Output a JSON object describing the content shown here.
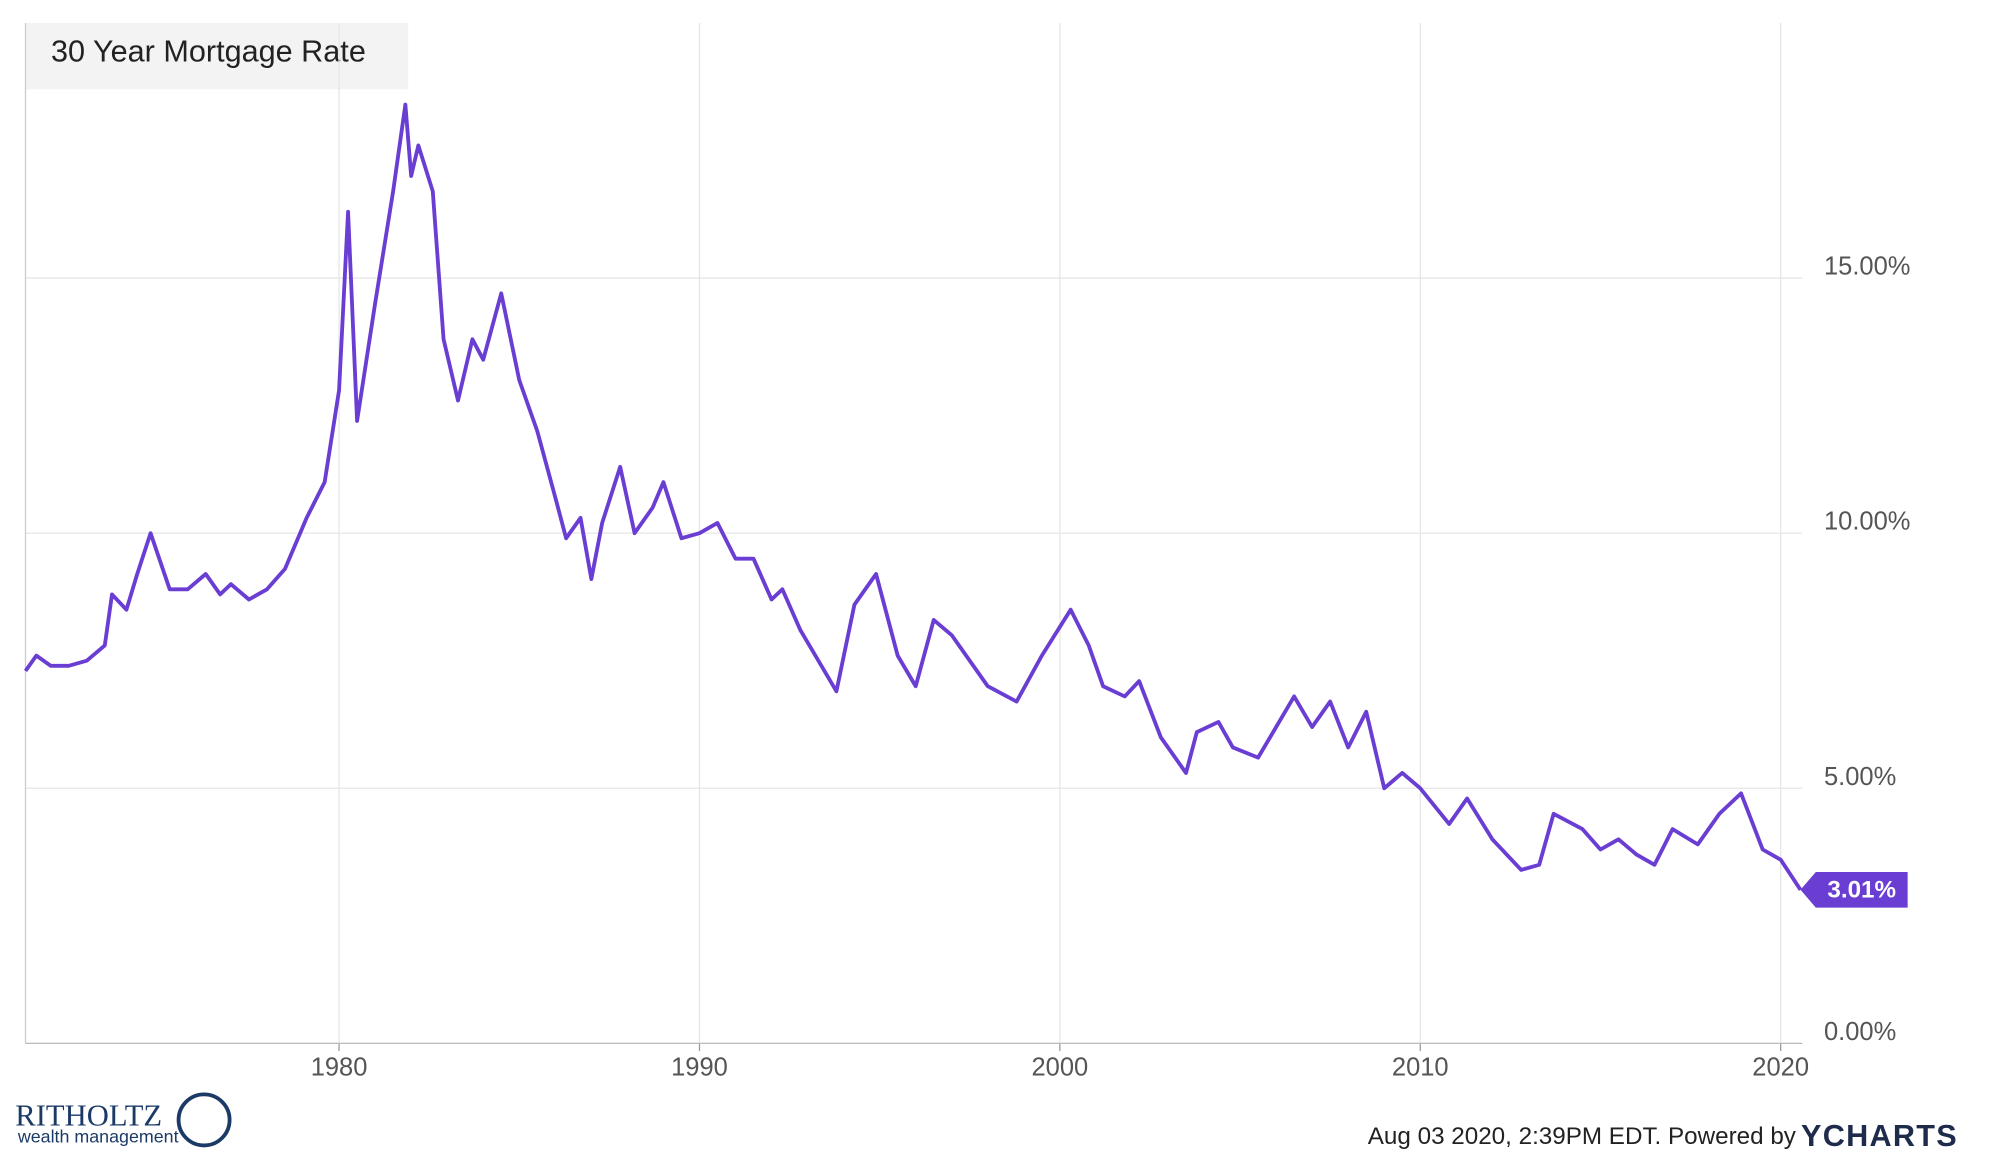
{
  "chart_data": {
    "type": "line",
    "title": "30 Year Mortgage Rate",
    "x": [
      1971.3,
      1971.6,
      1972.0,
      1972.5,
      1973.0,
      1973.5,
      1973.7,
      1974.1,
      1974.4,
      1974.77,
      1975.3,
      1975.8,
      1976.3,
      1976.7,
      1977.0,
      1977.5,
      1978.0,
      1978.5,
      1979.1,
      1979.6,
      1980.0,
      1980.25,
      1980.5,
      1981.0,
      1981.5,
      1981.84,
      1982.0,
      1982.2,
      1982.6,
      1982.9,
      1983.3,
      1983.7,
      1984.0,
      1984.5,
      1985.0,
      1985.5,
      1986.0,
      1986.3,
      1986.7,
      1987.0,
      1987.3,
      1987.8,
      1988.2,
      1988.7,
      1989.0,
      1989.5,
      1990.0,
      1990.5,
      1991.0,
      1991.5,
      1992.0,
      1992.3,
      1992.8,
      1993.3,
      1993.8,
      1994.3,
      1994.9,
      1995.5,
      1996.0,
      1996.5,
      1997.0,
      1997.5,
      1998.0,
      1998.8,
      1999.5,
      2000.3,
      2000.8,
      2001.2,
      2001.8,
      2002.2,
      2002.8,
      2003.5,
      2003.8,
      2004.4,
      2004.8,
      2005.5,
      2006.5,
      2007.0,
      2007.5,
      2008.0,
      2008.5,
      2009.0,
      2009.5,
      2010.0,
      2010.8,
      2011.3,
      2012.0,
      2012.8,
      2013.3,
      2013.7,
      2014.5,
      2015.0,
      2015.5,
      2016.0,
      2016.5,
      2017.0,
      2017.7,
      2018.3,
      2018.9,
      2019.5,
      2020.0,
      2020.55
    ],
    "values": [
      7.3,
      7.6,
      7.4,
      7.4,
      7.5,
      7.8,
      8.8,
      8.5,
      9.2,
      10.0,
      8.9,
      8.9,
      9.2,
      8.8,
      9.0,
      8.7,
      8.9,
      9.3,
      10.3,
      11.0,
      12.8,
      16.3,
      12.2,
      14.5,
      16.7,
      18.4,
      17.0,
      17.6,
      16.7,
      13.8,
      12.6,
      13.8,
      13.4,
      14.7,
      13.0,
      12.0,
      10.7,
      9.9,
      10.3,
      9.1,
      10.2,
      11.3,
      10.0,
      10.5,
      11.0,
      9.9,
      10.0,
      10.2,
      9.5,
      9.5,
      8.7,
      8.9,
      8.1,
      7.5,
      6.9,
      8.6,
      9.2,
      7.6,
      7.0,
      8.3,
      8.0,
      7.5,
      7.0,
      6.7,
      7.6,
      8.5,
      7.8,
      7.0,
      6.8,
      7.1,
      6.0,
      5.3,
      6.1,
      6.3,
      5.8,
      5.6,
      6.8,
      6.2,
      6.7,
      5.8,
      6.5,
      5.0,
      5.3,
      5.0,
      4.3,
      4.8,
      4.0,
      3.4,
      3.5,
      4.5,
      4.2,
      3.8,
      4.0,
      3.7,
      3.5,
      4.2,
      3.9,
      4.5,
      4.9,
      3.8,
      3.6,
      3.01
    ],
    "value_labels": [
      null,
      null,
      null,
      null,
      null,
      null,
      null,
      null,
      null,
      null,
      null,
      null,
      null,
      null,
      null,
      null,
      null,
      null,
      null,
      null,
      null,
      null,
      null,
      null,
      null,
      null,
      null,
      null,
      null,
      null,
      null,
      null,
      null,
      null,
      null,
      null,
      null,
      null,
      null,
      null,
      null,
      null,
      null,
      null,
      null,
      null,
      null,
      null,
      null,
      null,
      null,
      null,
      null,
      null,
      null,
      null,
      null,
      null,
      null,
      null,
      null,
      null,
      null,
      null,
      null,
      null,
      null,
      null,
      null,
      null,
      null,
      null,
      null,
      null,
      null,
      null,
      null,
      null,
      null,
      null,
      null,
      null,
      null,
      null,
      null,
      null,
      null,
      null,
      null,
      null,
      null,
      null,
      null,
      null,
      null,
      null,
      null,
      null,
      null,
      null,
      null,
      "3.01%"
    ],
    "color": "#6a3dd3",
    "xlim": [
      1971.3,
      2020.6
    ],
    "xticks": [
      1980,
      1990,
      2000,
      2010,
      2020
    ],
    "ylim": [
      0,
      20
    ],
    "yticks": [
      {
        "value": 0,
        "label": "0.00%"
      },
      {
        "value": 5,
        "label": "5.00%"
      },
      {
        "value": 10,
        "label": "10.00%"
      },
      {
        "value": 15,
        "label": "15.00%"
      }
    ],
    "grid": true,
    "watermark": {
      "name": "RITHOLTZ",
      "tagline": "wealth management"
    },
    "credit": "Aug 03 2020, 2:39PM EDT. Powered by",
    "brand": "YCHARTS"
  }
}
